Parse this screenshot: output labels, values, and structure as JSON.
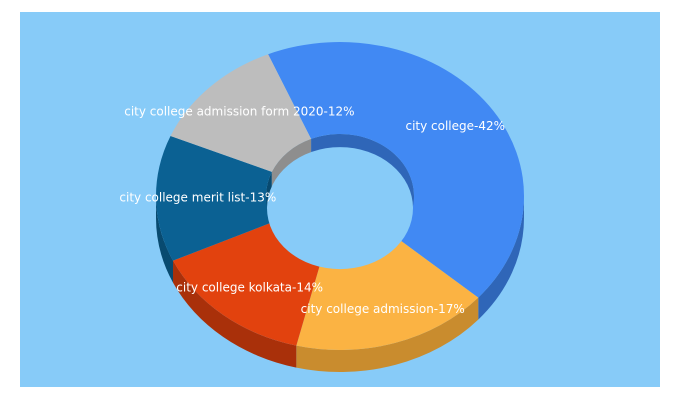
{
  "colors": {
    "background": "#87cbf8"
  },
  "chart_data": {
    "type": "pie",
    "style": "3d-donut",
    "slices": [
      {
        "label": "city college-42%",
        "value": 42,
        "color": "#4189f3",
        "side": "#2f66b8"
      },
      {
        "label": "city college admission-17%",
        "value": 17,
        "color": "#fbb343",
        "side": "#c98c2e"
      },
      {
        "label": "city college kolkata-14%",
        "value": 14,
        "color": "#e2420e",
        "side": "#a9300a"
      },
      {
        "label": "city college merit list-13%",
        "value": 13,
        "color": "#0b6193",
        "side": "#084a70"
      },
      {
        "label": "city college admission form 2020-12%",
        "value": 12,
        "color": "#bdbdbd",
        "side": "#8e8e8e"
      }
    ]
  }
}
